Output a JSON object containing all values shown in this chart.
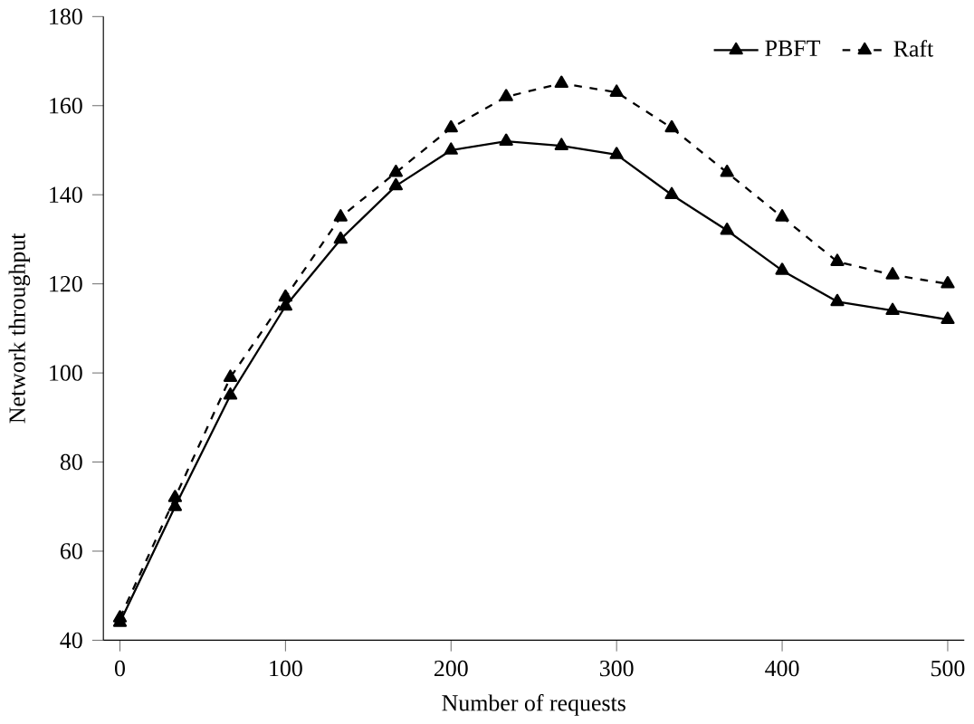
{
  "chart_data": {
    "type": "line",
    "xlabel": "Number of requests",
    "ylabel": "Network throughput",
    "x": [
      0,
      33.3,
      66.7,
      100,
      133.3,
      166.7,
      200,
      233.3,
      266.7,
      300,
      333.3,
      366.7,
      400,
      433.3,
      466.7,
      500
    ],
    "series": [
      {
        "name": "PBFT",
        "color": "#000000",
        "line_style": "solid",
        "values": [
          44,
          70,
          95,
          115,
          130,
          142,
          150,
          152,
          151,
          149,
          140,
          132,
          123,
          116,
          114,
          112
        ]
      },
      {
        "name": "Raft",
        "color": "#000000",
        "line_style": "dashed",
        "values": [
          45,
          72,
          99,
          117,
          135,
          145,
          155,
          162,
          165,
          163,
          155,
          145,
          135,
          125,
          122,
          120
        ]
      }
    ],
    "xlim": [
      -10,
      510
    ],
    "ylim": [
      40,
      180
    ],
    "xticks": [
      0,
      100,
      200,
      300,
      400,
      500
    ],
    "yticks": [
      40,
      60,
      80,
      100,
      120,
      140,
      160,
      180
    ],
    "marker": "triangle",
    "legend": "top right",
    "grid": false
  }
}
